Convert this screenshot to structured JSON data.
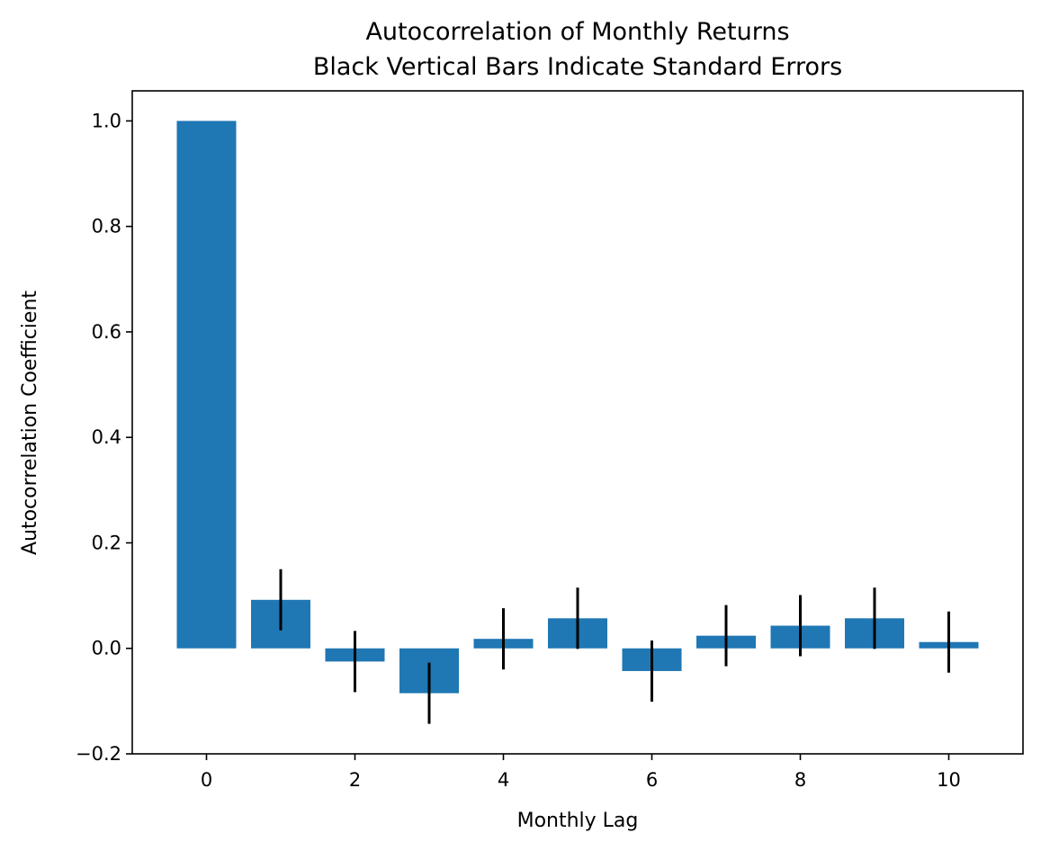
{
  "chart_data": {
    "type": "bar",
    "title": "Autocorrelation of Monthly Returns",
    "subtitle": "Black Vertical Bars Indicate Standard Errors",
    "xlabel": "Monthly Lag",
    "ylabel": "Autocorrelation Coefficient",
    "x": [
      0,
      1,
      2,
      3,
      4,
      5,
      6,
      7,
      8,
      9,
      10
    ],
    "values": [
      1.0,
      0.092,
      -0.025,
      -0.085,
      0.018,
      0.057,
      -0.043,
      0.024,
      0.043,
      0.057,
      0.012
    ],
    "std_errors": [
      0,
      0.058,
      0.058,
      0.058,
      0.058,
      0.058,
      0.058,
      0.058,
      0.058,
      0.058,
      0.058
    ],
    "xlim": [
      -1,
      11
    ],
    "ylim": [
      -0.2,
      1.057
    ],
    "xticks": [
      0,
      2,
      4,
      6,
      8,
      10
    ],
    "yticks": [
      -0.2,
      0.0,
      0.2,
      0.4,
      0.6,
      0.8,
      1.0
    ],
    "ytick_labels": [
      "−0.2",
      "0.0",
      "0.2",
      "0.4",
      "0.6",
      "0.8",
      "1.0"
    ],
    "bar_color": "#1f77b4",
    "error_color": "#000000",
    "grid": false,
    "legend": "none"
  }
}
